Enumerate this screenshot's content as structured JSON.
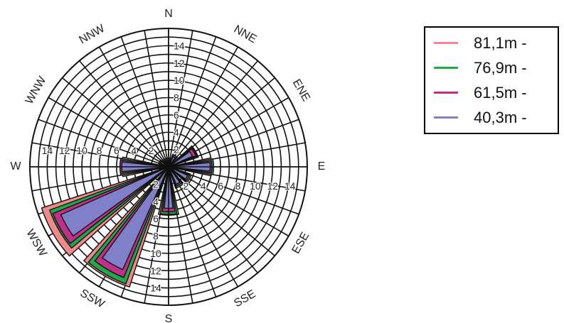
{
  "chart_data": {
    "type": "rose",
    "directions": [
      "N",
      "NNE",
      "ENE",
      "E",
      "ESE",
      "SSE",
      "S",
      "SSW",
      "WSW",
      "W",
      "WNW",
      "NNW"
    ],
    "radial_ticks": [
      2,
      4,
      6,
      8,
      10,
      12,
      14
    ],
    "rmax": 16,
    "series": [
      {
        "name": "81,1m -",
        "color": "#f08a8a",
        "values": [
          0.5,
          1.5,
          3.6,
          5.0,
          2.6,
          2.6,
          5.6,
          14.6,
          15.4,
          5.4,
          1.2,
          0.8
        ]
      },
      {
        "name": "76,9m -",
        "color": "#1faa4a",
        "values": [
          0.5,
          1.4,
          3.5,
          5.2,
          2.8,
          2.6,
          5.5,
          14.4,
          14.6,
          5.6,
          1.1,
          0.7
        ]
      },
      {
        "name": "61,5m -",
        "color": "#c0308a",
        "values": [
          0.5,
          1.5,
          3.4,
          5.0,
          2.6,
          2.4,
          5.2,
          13.8,
          14.4,
          5.6,
          1.0,
          0.8
        ]
      },
      {
        "name": "40,3m -",
        "color": "#8080c8",
        "values": [
          0.4,
          1.3,
          3.0,
          4.8,
          2.4,
          2.2,
          4.8,
          13.0,
          13.6,
          5.4,
          1.0,
          0.7
        ]
      }
    ]
  },
  "legend": {
    "items": [
      {
        "label": "81,1m -",
        "color": "#f08a8a"
      },
      {
        "label": "76,9m -",
        "color": "#1faa4a"
      },
      {
        "label": "61,5m -",
        "color": "#c0308a"
      },
      {
        "label": "40,3m -",
        "color": "#8080c8"
      }
    ]
  }
}
